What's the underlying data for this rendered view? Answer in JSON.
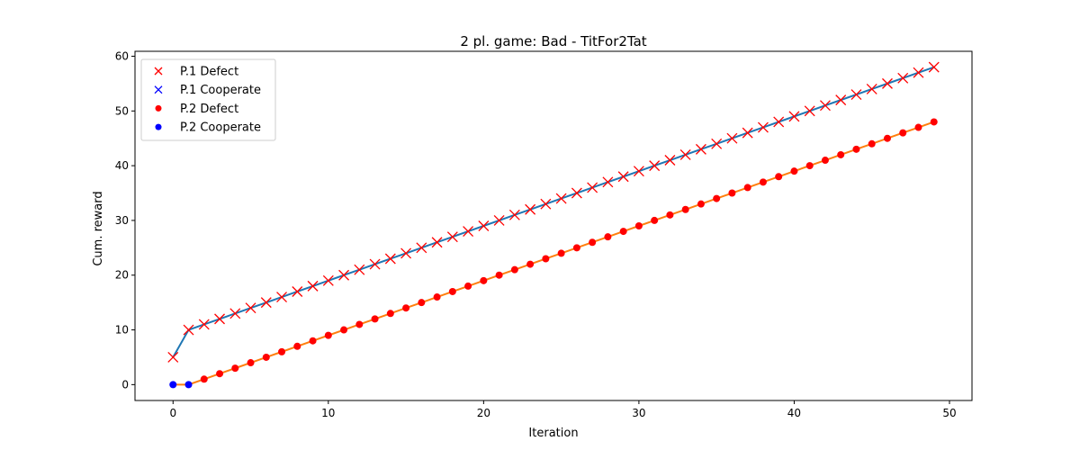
{
  "chart_data": {
    "type": "line",
    "title": "2 pl. game: Bad - TitFor2Tat",
    "xlabel": "Iteration",
    "ylabel": "Cum. reward",
    "xlim": [
      -2.45,
      51.45
    ],
    "ylim": [
      -2.9,
      60.9
    ],
    "xticks": [
      0,
      10,
      20,
      30,
      40,
      50
    ],
    "yticks": [
      0,
      10,
      20,
      30,
      40,
      50,
      60
    ],
    "legend_position": "top-left",
    "grid": false,
    "legend": [
      {
        "label": "P.1 Defect",
        "marker": "x",
        "color": "#ff0000"
      },
      {
        "label": "P.1 Cooperate",
        "marker": "x",
        "color": "#0000ff"
      },
      {
        "label": "P.2 Defect",
        "marker": "o",
        "color": "#ff0000"
      },
      {
        "label": "P.2 Cooperate",
        "marker": "o",
        "color": "#0000ff"
      }
    ],
    "series": [
      {
        "name": "P.1",
        "line_color": "#1f77b4",
        "marker": "x",
        "x": [
          0,
          1,
          2,
          3,
          4,
          5,
          6,
          7,
          8,
          9,
          10,
          11,
          12,
          13,
          14,
          15,
          16,
          17,
          18,
          19,
          20,
          21,
          22,
          23,
          24,
          25,
          26,
          27,
          28,
          29,
          30,
          31,
          32,
          33,
          34,
          35,
          36,
          37,
          38,
          39,
          40,
          41,
          42,
          43,
          44,
          45,
          46,
          47,
          48,
          49
        ],
        "y": [
          5,
          10,
          11,
          12,
          13,
          14,
          15,
          16,
          17,
          18,
          19,
          20,
          21,
          22,
          23,
          24,
          25,
          26,
          27,
          28,
          29,
          30,
          31,
          32,
          33,
          34,
          35,
          36,
          37,
          38,
          39,
          40,
          41,
          42,
          43,
          44,
          45,
          46,
          47,
          48,
          49,
          50,
          51,
          52,
          53,
          54,
          55,
          56,
          57,
          58
        ],
        "actions": [
          "D",
          "D",
          "D",
          "D",
          "D",
          "D",
          "D",
          "D",
          "D",
          "D",
          "D",
          "D",
          "D",
          "D",
          "D",
          "D",
          "D",
          "D",
          "D",
          "D",
          "D",
          "D",
          "D",
          "D",
          "D",
          "D",
          "D",
          "D",
          "D",
          "D",
          "D",
          "D",
          "D",
          "D",
          "D",
          "D",
          "D",
          "D",
          "D",
          "D",
          "D",
          "D",
          "D",
          "D",
          "D",
          "D",
          "D",
          "D",
          "D",
          "D"
        ]
      },
      {
        "name": "P.2",
        "line_color": "#ff7f0e",
        "marker": "o",
        "x": [
          0,
          1,
          2,
          3,
          4,
          5,
          6,
          7,
          8,
          9,
          10,
          11,
          12,
          13,
          14,
          15,
          16,
          17,
          18,
          19,
          20,
          21,
          22,
          23,
          24,
          25,
          26,
          27,
          28,
          29,
          30,
          31,
          32,
          33,
          34,
          35,
          36,
          37,
          38,
          39,
          40,
          41,
          42,
          43,
          44,
          45,
          46,
          47,
          48,
          49
        ],
        "y": [
          0,
          0,
          1,
          2,
          3,
          4,
          5,
          6,
          7,
          8,
          9,
          10,
          11,
          12,
          13,
          14,
          15,
          16,
          17,
          18,
          19,
          20,
          21,
          22,
          23,
          24,
          25,
          26,
          27,
          28,
          29,
          30,
          31,
          32,
          33,
          34,
          35,
          36,
          37,
          38,
          39,
          40,
          41,
          42,
          43,
          44,
          45,
          46,
          47,
          48
        ],
        "actions": [
          "C",
          "C",
          "D",
          "D",
          "D",
          "D",
          "D",
          "D",
          "D",
          "D",
          "D",
          "D",
          "D",
          "D",
          "D",
          "D",
          "D",
          "D",
          "D",
          "D",
          "D",
          "D",
          "D",
          "D",
          "D",
          "D",
          "D",
          "D",
          "D",
          "D",
          "D",
          "D",
          "D",
          "D",
          "D",
          "D",
          "D",
          "D",
          "D",
          "D",
          "D",
          "D",
          "D",
          "D",
          "D",
          "D",
          "D",
          "D",
          "D",
          "D"
        ]
      }
    ],
    "action_colors": {
      "D": "#ff0000",
      "C": "#0000ff"
    }
  }
}
